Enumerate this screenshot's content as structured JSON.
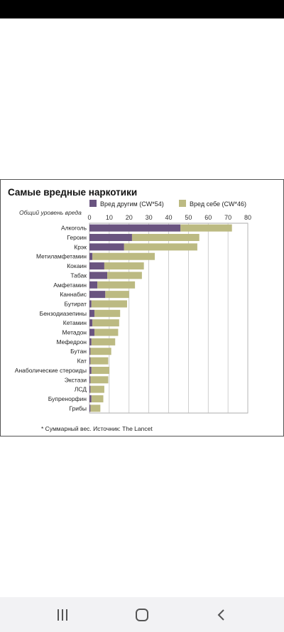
{
  "chart_data": {
    "type": "bar",
    "stacked": true,
    "orientation": "horizontal",
    "title": "Самые вредные наркотики",
    "axis_label": "Общий уровень вреда",
    "footnote": "* Суммарный вес. Источник: The Lancet",
    "xlim": [
      0,
      80
    ],
    "xticks": [
      0,
      10,
      20,
      30,
      40,
      50,
      60,
      70,
      80
    ],
    "grid": true,
    "legend_position": "top",
    "categories": [
      "Алкоголь",
      "Героин",
      "Крэк",
      "Метиламфетамин",
      "Кокаин",
      "Табак",
      "Амфетамин",
      "Каннабис",
      "Бутират",
      "Бензодиазепины",
      "Кетамин",
      "Метадон",
      "Мефедрон",
      "Бутан",
      "Кат",
      "Анаболические стероиды",
      "Экстази",
      "ЛСД",
      "Бупренорфин",
      "Грибы"
    ],
    "series": [
      {
        "name": "Вред другим (CW*54)",
        "color": "#6a5480",
        "values": [
          46,
          21.5,
          17.5,
          1.5,
          7.5,
          9,
          4,
          8,
          1,
          2.5,
          1.5,
          2.5,
          1,
          0.5,
          0.5,
          1,
          0.5,
          0.5,
          1,
          0.5
        ]
      },
      {
        "name": "Вред себе (CW*46)",
        "color": "#bcba82",
        "values": [
          26,
          34,
          37,
          31.5,
          20,
          17.5,
          19,
          12,
          18,
          13,
          13.5,
          12,
          12,
          10.5,
          9,
          9,
          9,
          7,
          6,
          5
        ]
      }
    ]
  },
  "nav": {
    "recents_icon": "recents-icon",
    "home_icon": "home-icon",
    "back_icon": "back-icon"
  }
}
